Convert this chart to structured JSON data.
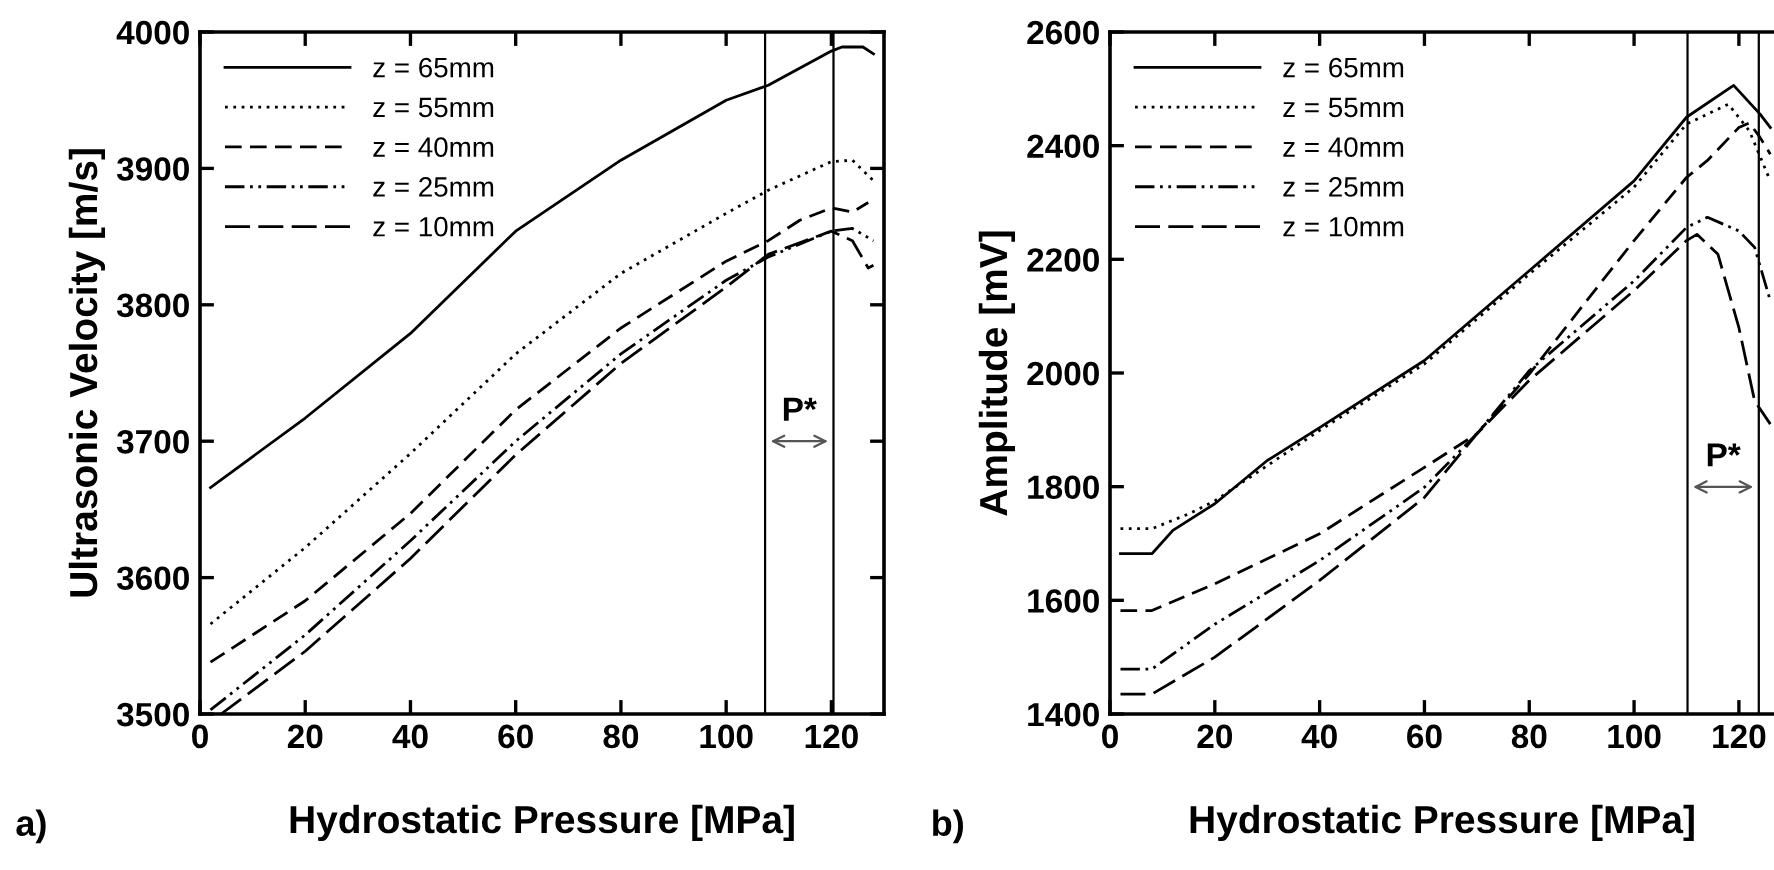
{
  "chart_data": [
    {
      "type": "line",
      "xlabel": "Hydrostatic Pressure [MPa]",
      "ylabel": "Ultrasonic Velocity [m/s]",
      "xlim": [
        0,
        130
      ],
      "xticks": [
        0,
        20,
        40,
        60,
        80,
        100,
        120
      ],
      "ylim": [
        3500,
        4000
      ],
      "yticks": [
        3500,
        3600,
        3700,
        3800,
        3900,
        4000
      ],
      "grid": false,
      "legend": "top left",
      "marker": "none",
      "ref_lines": [
        {
          "axis": "x",
          "value": 107.4,
          "color": "#000000"
        },
        {
          "axis": "x",
          "value": 120.4,
          "color": "#000000"
        }
      ],
      "annotations": [
        "P*",
        "a)"
      ],
      "series": [
        {
          "name": "z = 65mm",
          "color": "#000000",
          "line_style": "solid",
          "x": [
            2,
            20,
            40,
            60,
            80,
            100,
            108,
            120,
            122,
            126,
            128
          ],
          "values": [
            3666,
            3717,
            3779,
            3854,
            3906,
            3950,
            3961,
            3986,
            3989,
            3989,
            3984
          ]
        },
        {
          "name": "z = 55mm",
          "color": "#000000",
          "line_style": "dotted",
          "x": [
            2,
            20,
            40,
            60,
            80,
            100,
            108,
            120,
            124,
            128
          ],
          "values": [
            3566,
            3622,
            3691,
            3764,
            3823,
            3867,
            3884,
            3905,
            3906,
            3891
          ]
        },
        {
          "name": "z = 40mm",
          "color": "#000000",
          "line_style": "dashed",
          "x": [
            2,
            20,
            40,
            60,
            80,
            100,
            108,
            114,
            120,
            124,
            127
          ],
          "values": [
            3538,
            3583,
            3647,
            3723,
            3783,
            3832,
            3847,
            3862,
            3871,
            3868,
            3875
          ]
        },
        {
          "name": "z = 25mm",
          "color": "#000000",
          "line_style": "dashdot",
          "x": [
            2,
            20,
            40,
            60,
            80,
            100,
            108,
            120,
            124,
            128
          ],
          "values": [
            3503,
            3558,
            3627,
            3700,
            3764,
            3818,
            3835,
            3854,
            3856,
            3847
          ]
        },
        {
          "name": "z = 10mm",
          "color": "#000000",
          "line_style": "longdash",
          "x": [
            4,
            20,
            40,
            60,
            80,
            100,
            108,
            120,
            124,
            127,
            128
          ],
          "values": [
            3500,
            3546,
            3614,
            3690,
            3757,
            3813,
            3837,
            3854,
            3847,
            3827,
            3829
          ]
        }
      ]
    },
    {
      "type": "line",
      "xlabel": "Hydrostatic Pressure [MPa]",
      "ylabel": "Amplitude [mV]",
      "xlim": [
        0,
        126.7
      ],
      "xticks": [
        0,
        20,
        40,
        60,
        80,
        100,
        120
      ],
      "ylim": [
        1400,
        2600
      ],
      "yticks": [
        1400,
        1600,
        1800,
        2000,
        2200,
        2400,
        2600
      ],
      "grid": false,
      "legend": "top left",
      "marker": "none",
      "ref_lines": [
        {
          "axis": "x",
          "value": 110.2,
          "color": "#000000"
        },
        {
          "axis": "x",
          "value": 123.8,
          "color": "#000000"
        }
      ],
      "annotations": [
        "P*",
        "b)"
      ],
      "series": [
        {
          "name": "z = 65mm",
          "color": "#000000",
          "line_style": "solid",
          "x": [
            2,
            8,
            12,
            20,
            30,
            40,
            60,
            80,
            100,
            110,
            119,
            124,
            126
          ],
          "values": [
            1682,
            1682,
            1723,
            1770,
            1846,
            1904,
            2022,
            2180,
            2338,
            2450,
            2506,
            2456,
            2432
          ]
        },
        {
          "name": "z = 55mm",
          "color": "#000000",
          "line_style": "dotted",
          "x": [
            2,
            8,
            15,
            20,
            40,
            60,
            80,
            100,
            110,
            118,
            122,
            126
          ],
          "values": [
            1726,
            1726,
            1752,
            1775,
            1899,
            2016,
            2174,
            2327,
            2438,
            2473,
            2426,
            2338
          ]
        },
        {
          "name": "z = 40mm",
          "color": "#000000",
          "line_style": "dashed",
          "x": [
            2,
            8,
            20,
            40,
            60,
            70,
            80,
            90,
            100,
            110,
            114,
            120,
            122,
            124,
            126
          ],
          "values": [
            1582,
            1582,
            1629,
            1717,
            1834,
            1893,
            1998,
            2116,
            2233,
            2344,
            2374,
            2432,
            2440,
            2415,
            2385
          ]
        },
        {
          "name": "z = 25mm",
          "color": "#000000",
          "line_style": "dashdot",
          "x": [
            2,
            8,
            20,
            40,
            60,
            70,
            80,
            100,
            110,
            114,
            120,
            123,
            126
          ],
          "values": [
            1479,
            1479,
            1558,
            1670,
            1799,
            1893,
            2004,
            2162,
            2256,
            2274,
            2250,
            2221,
            2127
          ]
        },
        {
          "name": "z = 10mm",
          "color": "#000000",
          "line_style": "longdash",
          "x": [
            2,
            8,
            20,
            40,
            60,
            70,
            80,
            100,
            110,
            112,
            116,
            120,
            123,
            126
          ],
          "values": [
            1435,
            1435,
            1500,
            1635,
            1781,
            1893,
            1987,
            2145,
            2233,
            2244,
            2209,
            2080,
            1951,
            1910
          ]
        }
      ]
    }
  ]
}
